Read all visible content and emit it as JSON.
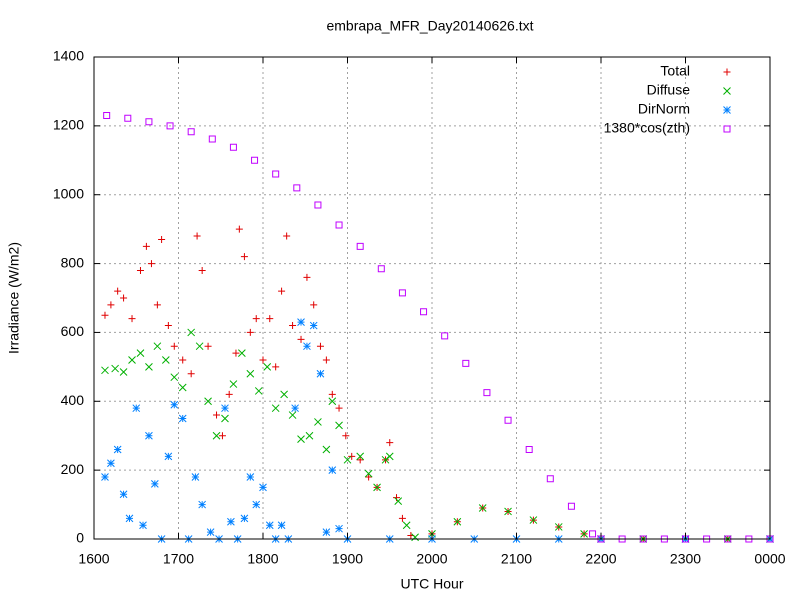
{
  "chart_data": {
    "type": "scatter",
    "title": "embrapa_MFR_Day20140626.txt",
    "x_label": "UTC Hour",
    "y_label": "Irradiance (W/m2)",
    "xlim": [
      1600,
      2400
    ],
    "ylim": [
      0,
      1400
    ],
    "xticks": [
      1600,
      1700,
      1800,
      1900,
      2000,
      2100,
      2200,
      2300,
      {
        "value": 2400,
        "label": "0000"
      }
    ],
    "yticks": [
      0,
      200,
      400,
      600,
      800,
      1000,
      1200,
      1400
    ],
    "grid": true,
    "legend": "top-right",
    "series": [
      {
        "name": "Total",
        "color": "#e00000",
        "marker": "plus",
        "x": [
          1613,
          1620,
          1628,
          1635,
          1645,
          1655,
          1662,
          1668,
          1675,
          1680,
          1688,
          1695,
          1705,
          1715,
          1722,
          1728,
          1735,
          1745,
          1752,
          1760,
          1768,
          1772,
          1778,
          1785,
          1792,
          1800,
          1808,
          1815,
          1822,
          1828,
          1835,
          1845,
          1852,
          1860,
          1868,
          1875,
          1882,
          1890,
          1898,
          1905,
          1915,
          1925,
          1935,
          1945,
          1950,
          1958,
          1965,
          1975,
          2000,
          2030,
          2060,
          2090,
          2120,
          2150,
          2180,
          2200,
          2250,
          2300,
          2350,
          2400
        ],
        "values": [
          650,
          680,
          720,
          700,
          640,
          780,
          850,
          800,
          680,
          870,
          620,
          560,
          520,
          480,
          880,
          780,
          560,
          360,
          300,
          420,
          540,
          900,
          820,
          600,
          640,
          520,
          640,
          500,
          720,
          880,
          620,
          580,
          760,
          680,
          560,
          520,
          420,
          380,
          300,
          240,
          230,
          180,
          150,
          230,
          280,
          120,
          60,
          10,
          15,
          50,
          90,
          80,
          55,
          35,
          15,
          0,
          0,
          0,
          0,
          0
        ]
      },
      {
        "name": "Diffuse",
        "color": "#00b000",
        "marker": "cross",
        "x": [
          1613,
          1625,
          1635,
          1645,
          1655,
          1665,
          1675,
          1685,
          1695,
          1705,
          1715,
          1725,
          1735,
          1745,
          1755,
          1765,
          1775,
          1785,
          1795,
          1805,
          1815,
          1825,
          1835,
          1845,
          1855,
          1865,
          1875,
          1882,
          1890,
          1900,
          1915,
          1925,
          1935,
          1945,
          1950,
          1960,
          1970,
          1980,
          2000,
          2030,
          2060,
          2090,
          2120,
          2150,
          2180,
          2200,
          2250,
          2300,
          2350,
          2400
        ],
        "values": [
          490,
          495,
          485,
          520,
          540,
          500,
          560,
          520,
          470,
          440,
          600,
          560,
          400,
          300,
          350,
          450,
          540,
          480,
          430,
          500,
          380,
          420,
          360,
          290,
          300,
          340,
          260,
          400,
          330,
          230,
          240,
          190,
          150,
          230,
          240,
          110,
          40,
          5,
          15,
          50,
          90,
          80,
          55,
          35,
          15,
          0,
          0,
          0,
          0,
          0
        ]
      },
      {
        "name": "DirNorm",
        "color": "#0080ff",
        "marker": "star",
        "x": [
          1613,
          1620,
          1628,
          1635,
          1642,
          1650,
          1658,
          1665,
          1672,
          1680,
          1688,
          1695,
          1705,
          1712,
          1720,
          1728,
          1738,
          1748,
          1755,
          1762,
          1770,
          1778,
          1785,
          1792,
          1800,
          1808,
          1815,
          1822,
          1830,
          1838,
          1845,
          1852,
          1860,
          1868,
          1875,
          1882,
          1890,
          1900,
          1950,
          2000,
          2050,
          2100,
          2150,
          2200,
          2300,
          2400
        ],
        "values": [
          180,
          220,
          260,
          130,
          60,
          380,
          40,
          300,
          160,
          0,
          240,
          390,
          350,
          0,
          180,
          100,
          20,
          0,
          380,
          50,
          0,
          60,
          180,
          100,
          150,
          40,
          0,
          40,
          0,
          380,
          630,
          560,
          620,
          480,
          20,
          200,
          30,
          0,
          0,
          0,
          0,
          0,
          0,
          0,
          0,
          0
        ]
      },
      {
        "name": "1380*cos(zth)",
        "color": "#c000ff",
        "marker": "square",
        "x": [
          1615,
          1640,
          1665,
          1690,
          1715,
          1740,
          1765,
          1790,
          1815,
          1840,
          1865,
          1890,
          1915,
          1940,
          1965,
          1990,
          2015,
          2040,
          2065,
          2090,
          2115,
          2140,
          2165,
          2190,
          2200,
          2225,
          2250,
          2275,
          2300,
          2325,
          2350,
          2375,
          2400
        ],
        "values": [
          1230,
          1222,
          1212,
          1200,
          1183,
          1162,
          1138,
          1100,
          1060,
          1020,
          970,
          912,
          850,
          785,
          715,
          660,
          590,
          510,
          425,
          345,
          260,
          175,
          95,
          15,
          0,
          0,
          0,
          0,
          0,
          0,
          0,
          0,
          0
        ]
      }
    ]
  }
}
